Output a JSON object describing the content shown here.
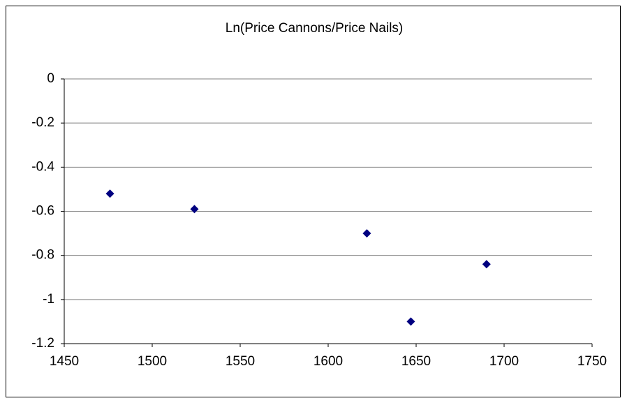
{
  "chart_data": {
    "type": "scatter",
    "title": "Ln(Price Cannons/Price Nails)",
    "series": [
      {
        "name": null,
        "color": "#000080",
        "x": [
          1476,
          1524,
          1622,
          1647,
          1690
        ],
        "values": [
          -0.52,
          -0.59,
          -0.7,
          -1.1,
          -0.84
        ]
      }
    ],
    "xlim": [
      1450,
      1750
    ],
    "xticks": [
      1450,
      1500,
      1550,
      1600,
      1650,
      1700,
      1750
    ],
    "ylim": [
      -1.2,
      0
    ],
    "yticks": [
      0,
      -0.2,
      -0.4,
      -0.6,
      -0.8,
      -1,
      -1.2
    ],
    "grid": true,
    "marker": "diamond"
  }
}
